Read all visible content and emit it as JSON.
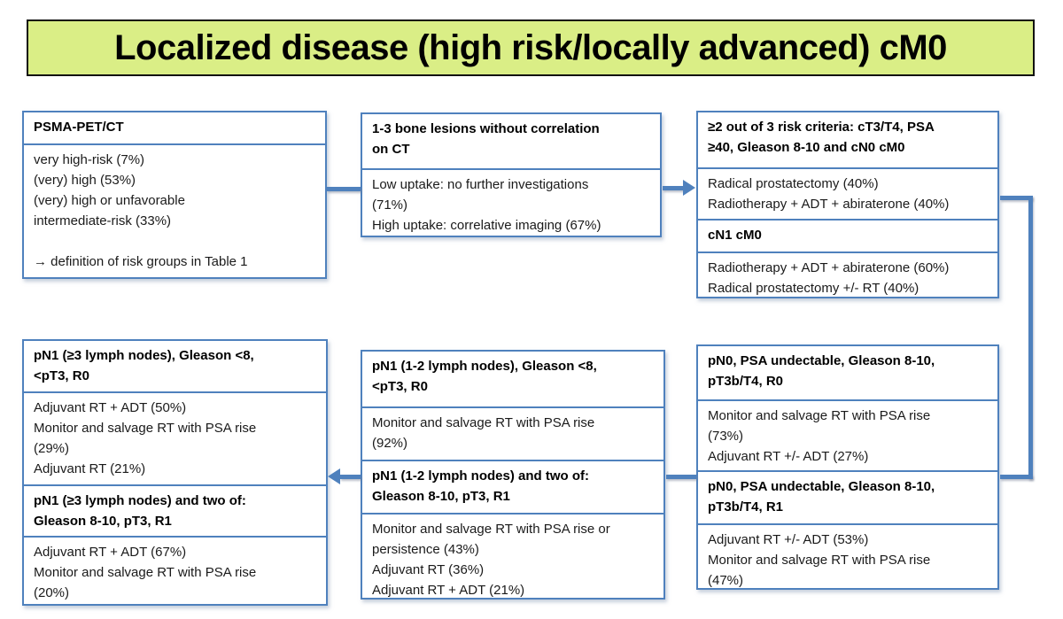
{
  "title": "Localized disease (high risk/locally advanced) cM0",
  "colors": {
    "blue": "#4f81bd",
    "banner_fill": "#daee86",
    "banner_border": "#111111"
  },
  "boxes": {
    "psma": {
      "sections": [
        {
          "kind": "header",
          "text": "PSMA-PET/CT"
        },
        {
          "kind": "body",
          "text": "very high-risk (7%)\n(very) high (53%)\n(very) high or unfavorable\nintermediate-risk (33%)\n\n→ definition of risk groups in Table 1"
        }
      ]
    },
    "bone": {
      "sections": [
        {
          "kind": "header",
          "text": "1-3 bone lesions without correlation\non CT"
        },
        {
          "kind": "body",
          "text": "Low uptake: no further investigations\n(71%)\nHigh uptake: correlative imaging (67%)"
        }
      ]
    },
    "risk": {
      "sections": [
        {
          "kind": "header",
          "text": "≥2 out of 3 risk criteria: cT3/T4, PSA\n≥40, Gleason 8-10 and cN0 cM0"
        },
        {
          "kind": "body",
          "text": "Radical prostatectomy (40%)\nRadiotherapy + ADT + abiraterone (40%)"
        },
        {
          "kind": "header",
          "text": "cN1 cM0"
        },
        {
          "kind": "body",
          "text": "Radiotherapy + ADT + abiraterone (60%)\nRadical prostatectomy +/- RT (40%)"
        }
      ]
    },
    "pn1maj": {
      "sections": [
        {
          "kind": "header",
          "text": "pN1 (≥3 lymph nodes), Gleason <8,\n<pT3, R0"
        },
        {
          "kind": "body",
          "text": "Adjuvant RT + ADT (50%)\nMonitor and salvage RT with PSA rise\n(29%)\nAdjuvant RT (21%)"
        },
        {
          "kind": "header",
          "text": "pN1 (≥3 lymph nodes) and two of:\nGleason 8-10, pT3, R1"
        },
        {
          "kind": "body",
          "text": "Adjuvant RT + ADT (67%)\nMonitor and salvage RT with PSA rise\n(20%)"
        }
      ]
    },
    "pn1min": {
      "sections": [
        {
          "kind": "header",
          "text": "pN1 (1-2 lymph nodes), Gleason <8,\n<pT3, R0"
        },
        {
          "kind": "body",
          "text": "Monitor and salvage RT with PSA rise\n(92%)"
        },
        {
          "kind": "header",
          "text": "pN1 (1-2 lymph nodes) and two of:\nGleason 8-10, pT3, R1"
        },
        {
          "kind": "body",
          "text": "Monitor and salvage RT with PSA rise or\npersistence (43%)\nAdjuvant RT (36%)\nAdjuvant RT + ADT (21%)"
        }
      ]
    },
    "pn0": {
      "sections": [
        {
          "kind": "header",
          "text": "pN0, PSA undectable, Gleason 8-10,\npT3b/T4, R0"
        },
        {
          "kind": "body",
          "text": "Monitor and salvage RT with PSA rise\n(73%)\nAdjuvant RT +/- ADT (27%)"
        },
        {
          "kind": "header",
          "text": "pN0, PSA undectable, Gleason 8-10,\npT3b/T4, R1"
        },
        {
          "kind": "body",
          "text": "Adjuvant RT +/- ADT (53%)\nMonitor and salvage RT with PSA rise\n(47%)"
        }
      ]
    }
  }
}
